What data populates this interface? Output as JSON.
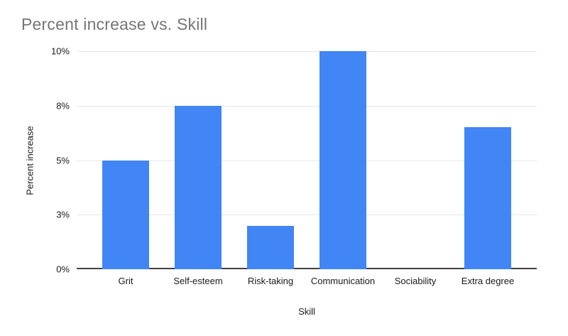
{
  "chart_data": {
    "type": "bar",
    "title": "Percent increase vs. Skill",
    "xlabel": "Skill",
    "ylabel": "Percent increase",
    "categories": [
      "Grit",
      "Self-esteem",
      "Risk-taking",
      "Communication",
      "Sociability",
      "Extra degree"
    ],
    "values": [
      5,
      7.5,
      2,
      10,
      0,
      6.5
    ],
    "ylim": [
      0,
      10
    ],
    "yticks": [
      {
        "value": 0,
        "label": "0%"
      },
      {
        "value": 2.5,
        "label": "3%"
      },
      {
        "value": 5,
        "label": "5%"
      },
      {
        "value": 7.5,
        "label": "8%"
      },
      {
        "value": 10,
        "label": "10%"
      }
    ],
    "grid": true,
    "legend_position": "none",
    "colors": {
      "bar": "#4285f4",
      "gridline": "#e6e6e6",
      "axis_line": "#424242",
      "title_text": "#757575",
      "label_text": "#1a1a1a",
      "background": "#ffffff"
    }
  }
}
